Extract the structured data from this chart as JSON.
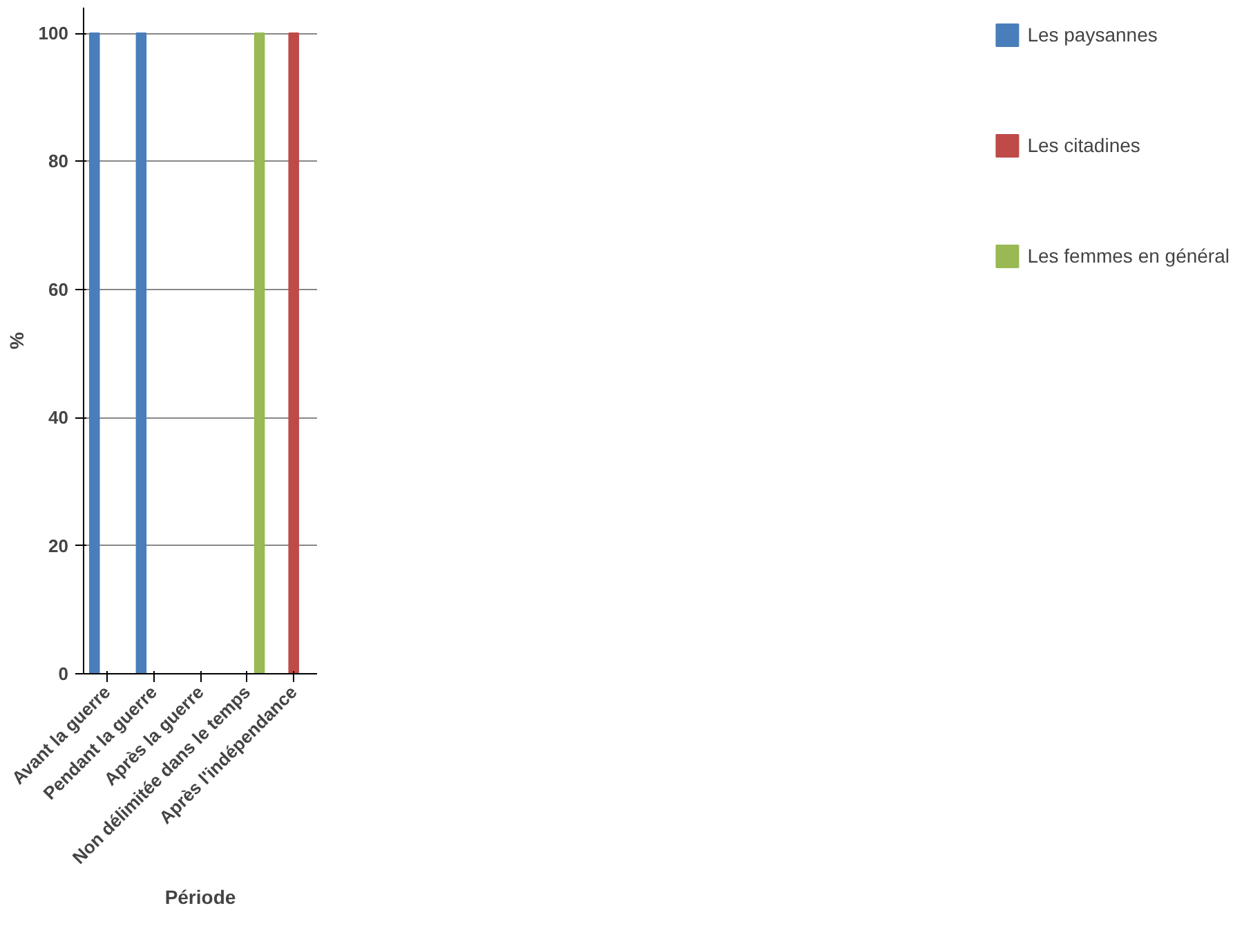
{
  "chart_data": {
    "type": "bar",
    "xlabel": "Période",
    "ylabel": "%",
    "categories": [
      "Avant la guerre",
      "Pendant la guerre",
      "Après la guerre",
      "Non délimitée dans le temps",
      "Après l'indépendance"
    ],
    "series": [
      {
        "name": "Les paysannes",
        "color": "#4a7ebb",
        "values": [
          100,
          100,
          null,
          0,
          0
        ]
      },
      {
        "name": "Les citadines",
        "color": "#be4b48",
        "values": [
          0,
          0,
          null,
          0,
          100
        ]
      },
      {
        "name": "Les femmes en général",
        "color": "#98b954",
        "values": [
          0,
          0,
          null,
          100,
          0
        ]
      }
    ],
    "ylim": [
      0,
      100
    ],
    "yticks": [
      0,
      20,
      40,
      60,
      80,
      100
    ],
    "grid": "y",
    "legend": "right"
  }
}
